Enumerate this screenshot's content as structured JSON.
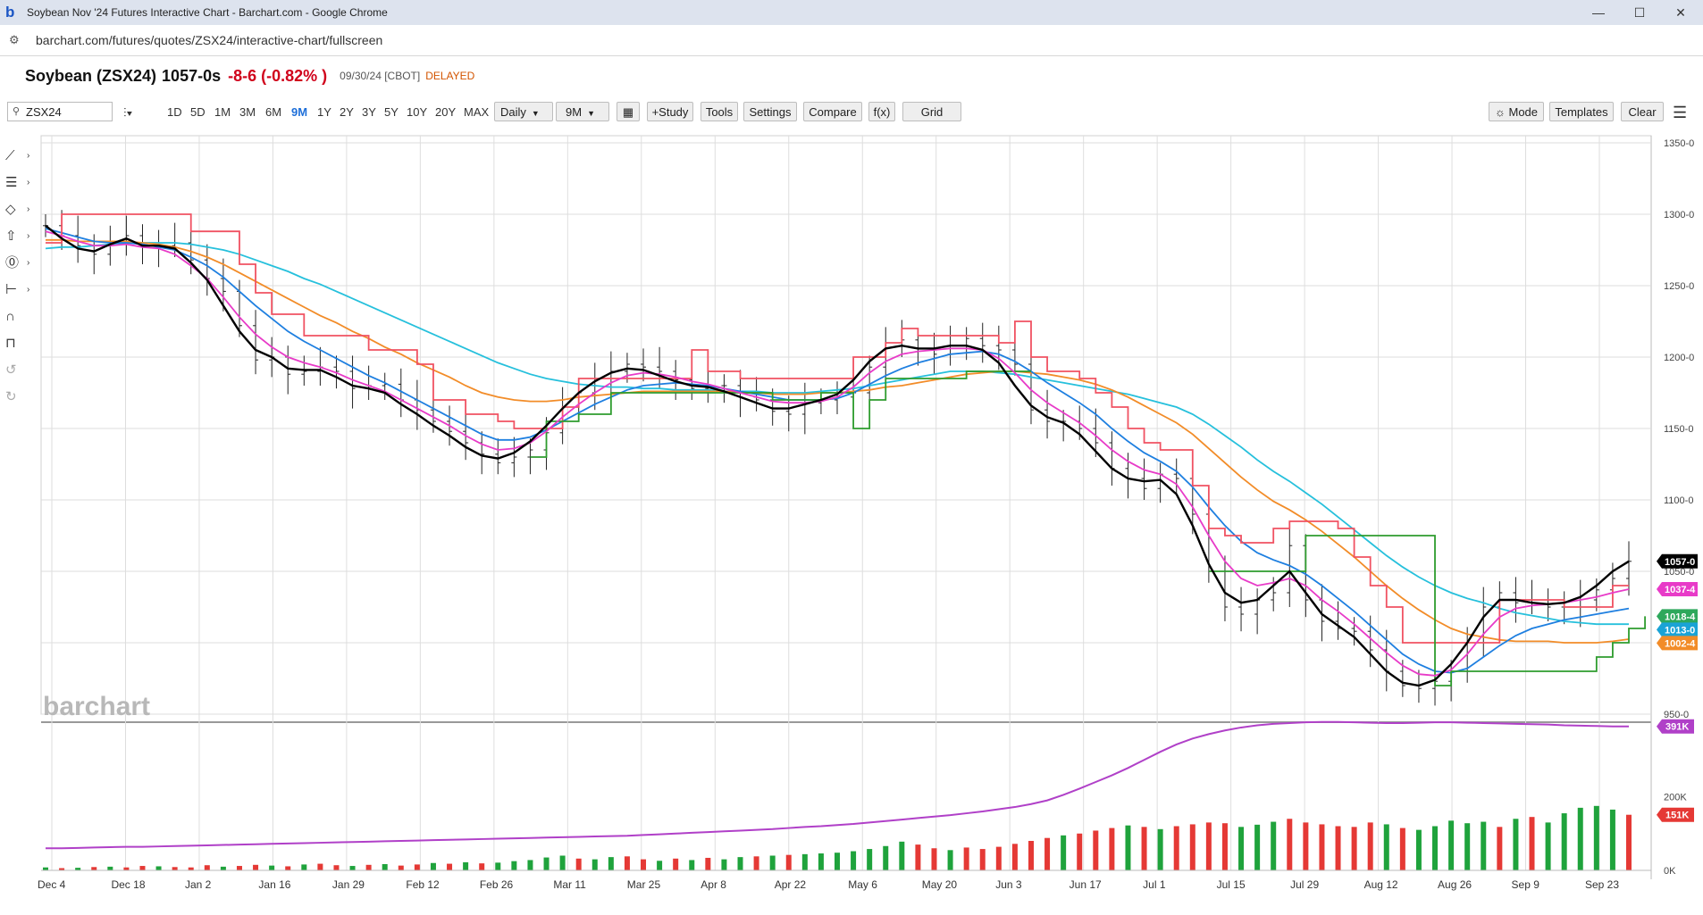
{
  "browser": {
    "window_title": "Soybean Nov '24 Futures Interactive Chart - Barchart.com - Google Chrome",
    "favicon": "b",
    "url": "barchart.com/futures/quotes/ZSX24/interactive-chart/fullscreen",
    "controls": {
      "minimize": "—",
      "maximize": "☐",
      "close": "✕"
    }
  },
  "quote": {
    "name": "Soybean (ZSX24)",
    "price": "1057-0s",
    "change": "-8-6 (-0.82% )",
    "date": "09/30/24 [CBOT]",
    "status": "DELAYED",
    "change_color": "#d0021b"
  },
  "toolbar": {
    "symbol_value": "ZSX24",
    "periods": [
      "1D",
      "5D",
      "1M",
      "3M",
      "6M",
      "9M",
      "1Y",
      "2Y",
      "3Y",
      "5Y",
      "10Y",
      "20Y",
      "MAX"
    ],
    "active_period": "9M",
    "interval": "Daily",
    "range": "9M",
    "calendar_icon": "▦",
    "study": "+Study",
    "tools": "Tools",
    "settings": "Settings",
    "compare": "Compare",
    "fx": "f(x)",
    "grid": "Grid",
    "mode": "☼ Mode",
    "templates": "Templates",
    "clear": "Clear",
    "menu_icon": "☰"
  },
  "drawing_tools": [
    "line-tool-icon",
    "fib-tool-icon",
    "shape-tool-icon",
    "arrow-tool-icon",
    "annotation-tool-icon",
    "measure-tool-icon",
    "magnet-icon",
    "lock-icon",
    "undo-icon",
    "redo-icon"
  ],
  "watermark": "barchart",
  "chart_data": {
    "type": "candlestick-with-overlays",
    "symbol": "ZSX24",
    "interval": "Daily",
    "price_axis": {
      "ylim": [
        950,
        1350
      ],
      "ticks": [
        "950-0",
        "1000-0",
        "1050-0",
        "1100-0",
        "1150-0",
        "1200-0",
        "1250-0",
        "1300-0",
        "1350-0"
      ]
    },
    "volume_axis": {
      "ylim": [
        0,
        400000
      ],
      "ticks": [
        "0K",
        "200K"
      ]
    },
    "date_labels": [
      "Dec 4",
      "Dec 18",
      "Jan 2",
      "Jan 16",
      "Jan 29",
      "Feb 12",
      "Feb 26",
      "Mar 11",
      "Mar 25",
      "Apr 8",
      "Apr 22",
      "May 6",
      "May 20",
      "Jun 3",
      "Jun 17",
      "Jul 1",
      "Jul 15",
      "Jul 29",
      "Aug 12",
      "Aug 26",
      "Sep 9",
      "Sep 23"
    ],
    "last_price_labels": [
      {
        "value": 1057,
        "label": "1057-0",
        "color": "#000000"
      },
      {
        "value": 1037.5,
        "label": "1037-4",
        "color": "#e83bc8"
      },
      {
        "value": 1018.5,
        "label": "1018-4",
        "color": "#2ea85c"
      },
      {
        "value": 1013,
        "label": "1013-0",
        "color": "#1aa3d6"
      },
      {
        "value": 1002.5,
        "label": "1002-4",
        "color": "#f28c28"
      }
    ],
    "volume_labels": [
      {
        "value": 391000,
        "label": "391K",
        "color": "#b040c8"
      },
      {
        "value": 151000,
        "label": "151K",
        "color": "#e53935"
      }
    ],
    "close_series": [
      1292,
      1285,
      1278,
      1272,
      1281,
      1285,
      1277,
      1278,
      1280,
      1268,
      1255,
      1246,
      1222,
      1198,
      1200,
      1188,
      1190,
      1193,
      1190,
      1178,
      1180,
      1181,
      1170,
      1163,
      1155,
      1148,
      1140,
      1132,
      1126,
      1130,
      1135,
      1147,
      1165,
      1175,
      1185,
      1190,
      1195,
      1193,
      1190,
      1184,
      1178,
      1180,
      1180,
      1172,
      1170,
      1162,
      1160,
      1168,
      1170,
      1172,
      1175,
      1193,
      1210,
      1212,
      1206,
      1202,
      1208,
      1213,
      1208,
      1205,
      1195,
      1163,
      1155,
      1155,
      1150,
      1140,
      1122,
      1115,
      1108,
      1118,
      1115,
      1090,
      1050,
      1025,
      1020,
      1030,
      1035,
      1068,
      1030,
      1015,
      1010,
      1008,
      995,
      980,
      970,
      968,
      973,
      980,
      1000,
      1025,
      1035,
      1028,
      1030,
      1025,
      1025,
      1030,
      1037,
      1045,
      1057
    ],
    "overlays": [
      {
        "color": "#000000",
        "values": [
          1292,
          1283,
          1276,
          1274,
          1279,
          1283,
          1278,
          1278,
          1276,
          1266,
          1254,
          1236,
          1218,
          1205,
          1200,
          1192,
          1191,
          1191,
          1186,
          1180,
          1178,
          1175,
          1167,
          1160,
          1152,
          1145,
          1137,
          1131,
          1129,
          1133,
          1141,
          1152,
          1164,
          1175,
          1183,
          1189,
          1192,
          1191,
          1187,
          1183,
          1180,
          1179,
          1176,
          1172,
          1168,
          1164,
          1164,
          1167,
          1170,
          1174,
          1184,
          1197,
          1206,
          1208,
          1206,
          1206,
          1208,
          1208,
          1205,
          1196,
          1180,
          1166,
          1158,
          1154,
          1146,
          1134,
          1122,
          1115,
          1113,
          1114,
          1104,
          1082,
          1055,
          1035,
          1028,
          1030,
          1040,
          1050,
          1035,
          1020,
          1012,
          1004,
          992,
          980,
          972,
          970,
          974,
          985,
          1000,
          1018,
          1030,
          1030,
          1028,
          1027,
          1028,
          1032,
          1040,
          1050,
          1057
        ]
      },
      {
        "color": "#e83bc8",
        "values": [
          1288,
          1285,
          1281,
          1278,
          1278,
          1279,
          1277,
          1276,
          1272,
          1264,
          1255,
          1242,
          1228,
          1216,
          1207,
          1200,
          1196,
          1193,
          1189,
          1184,
          1180,
          1176,
          1170,
          1164,
          1158,
          1152,
          1145,
          1139,
          1135,
          1136,
          1140,
          1148,
          1158,
          1167,
          1175,
          1182,
          1187,
          1189,
          1188,
          1186,
          1183,
          1181,
          1178,
          1175,
          1172,
          1169,
          1168,
          1168,
          1169,
          1172,
          1179,
          1189,
          1197,
          1202,
          1204,
          1205,
          1206,
          1206,
          1205,
          1199,
          1189,
          1177,
          1168,
          1161,
          1154,
          1145,
          1135,
          1127,
          1121,
          1118,
          1111,
          1095,
          1075,
          1057,
          1045,
          1040,
          1042,
          1045,
          1040,
          1030,
          1022,
          1013,
          1003,
          993,
          984,
          978,
          977,
          981,
          992,
          1006,
          1018,
          1024,
          1026,
          1027,
          1028,
          1030,
          1032,
          1035,
          1037.5
        ]
      },
      {
        "color": "#1e7fe0",
        "values": [
          1290,
          1287,
          1284,
          1281,
          1280,
          1280,
          1279,
          1277,
          1275,
          1270,
          1264,
          1256,
          1246,
          1236,
          1227,
          1218,
          1211,
          1205,
          1199,
          1193,
          1187,
          1182,
          1176,
          1170,
          1164,
          1158,
          1152,
          1146,
          1142,
          1142,
          1144,
          1149,
          1155,
          1161,
          1167,
          1172,
          1177,
          1180,
          1181,
          1182,
          1181,
          1180,
          1178,
          1176,
          1174,
          1172,
          1170,
          1170,
          1170,
          1171,
          1175,
          1181,
          1187,
          1192,
          1196,
          1199,
          1202,
          1203,
          1204,
          1202,
          1197,
          1190,
          1182,
          1175,
          1168,
          1160,
          1150,
          1141,
          1133,
          1127,
          1120,
          1109,
          1095,
          1082,
          1071,
          1063,
          1058,
          1054,
          1048,
          1040,
          1031,
          1022,
          1012,
          1002,
          992,
          985,
          980,
          979,
          982,
          990,
          998,
          1005,
          1010,
          1013,
          1016,
          1018,
          1020,
          1022,
          1024
        ]
      },
      {
        "color": "#f28c28",
        "values": [
          1282,
          1282,
          1281,
          1281,
          1281,
          1281,
          1280,
          1279,
          1277,
          1274,
          1270,
          1265,
          1259,
          1253,
          1247,
          1241,
          1235,
          1229,
          1224,
          1218,
          1213,
          1207,
          1202,
          1196,
          1191,
          1186,
          1180,
          1175,
          1172,
          1170,
          1169,
          1169,
          1170,
          1172,
          1173,
          1174,
          1175,
          1176,
          1176,
          1176,
          1176,
          1176,
          1176,
          1175,
          1175,
          1174,
          1174,
          1174,
          1175,
          1175,
          1176,
          1177,
          1179,
          1180,
          1182,
          1184,
          1186,
          1188,
          1189,
          1190,
          1190,
          1189,
          1188,
          1186,
          1184,
          1181,
          1177,
          1172,
          1166,
          1160,
          1154,
          1146,
          1136,
          1126,
          1116,
          1107,
          1099,
          1093,
          1086,
          1078,
          1069,
          1060,
          1050,
          1040,
          1031,
          1023,
          1016,
          1010,
          1006,
          1004,
          1002,
          1001,
          1001,
          1001,
          1000,
          1000,
          1000,
          1001,
          1002.5
        ]
      },
      {
        "color": "#26c0dc",
        "values": [
          1276,
          1277,
          1277,
          1278,
          1279,
          1280,
          1280,
          1280,
          1280,
          1279,
          1277,
          1275,
          1272,
          1268,
          1264,
          1260,
          1255,
          1251,
          1246,
          1241,
          1236,
          1231,
          1226,
          1221,
          1216,
          1211,
          1206,
          1201,
          1196,
          1192,
          1188,
          1185,
          1183,
          1181,
          1180,
          1179,
          1179,
          1178,
          1178,
          1177,
          1177,
          1177,
          1176,
          1176,
          1176,
          1175,
          1175,
          1175,
          1176,
          1177,
          1178,
          1180,
          1182,
          1184,
          1186,
          1188,
          1190,
          1190,
          1190,
          1189,
          1188,
          1186,
          1184,
          1182,
          1180,
          1178,
          1176,
          1174,
          1171,
          1168,
          1165,
          1160,
          1153,
          1145,
          1137,
          1128,
          1120,
          1113,
          1105,
          1097,
          1088,
          1079,
          1070,
          1061,
          1053,
          1046,
          1040,
          1035,
          1031,
          1028,
          1024,
          1021,
          1019,
          1017,
          1015,
          1014,
          1013,
          1013,
          1013
        ]
      },
      {
        "color": "#f05262",
        "step": true,
        "values": [
          1280,
          1300,
          1300,
          1300,
          1300,
          1300,
          1300,
          1300,
          1300,
          1288,
          1288,
          1288,
          1265,
          1245,
          1230,
          1230,
          1215,
          1215,
          1215,
          1215,
          1205,
          1205,
          1205,
          1195,
          1170,
          1170,
          1160,
          1160,
          1155,
          1150,
          1150,
          1150,
          1165,
          1185,
          1185,
          1185,
          1185,
          1185,
          1185,
          1185,
          1205,
          1190,
          1190,
          1185,
          1185,
          1185,
          1185,
          1185,
          1185,
          1185,
          1200,
          1200,
          1210,
          1220,
          1215,
          1215,
          1215,
          1215,
          1215,
          1210,
          1225,
          1200,
          1190,
          1190,
          1185,
          1175,
          1165,
          1150,
          1140,
          1135,
          1135,
          1110,
          1080,
          1075,
          1070,
          1070,
          1080,
          1085,
          1085,
          1085,
          1080,
          1060,
          1040,
          1025,
          1000,
          1000,
          1000,
          1000,
          1000,
          1000,
          1030,
          1030,
          1030,
          1030,
          1025,
          1025,
          1025,
          1040,
          1040
        ]
      },
      {
        "color": "#2e9c2e",
        "step": true,
        "values": [
          null,
          null,
          null,
          null,
          null,
          null,
          null,
          null,
          null,
          null,
          null,
          null,
          null,
          null,
          null,
          null,
          null,
          null,
          null,
          null,
          null,
          null,
          null,
          null,
          null,
          null,
          null,
          null,
          null,
          null,
          1130,
          1155,
          1155,
          1160,
          1160,
          1175,
          1175,
          1175,
          1175,
          1175,
          1175,
          1175,
          1175,
          1175,
          1175,
          1170,
          1170,
          1170,
          1175,
          1175,
          1150,
          1170,
          1185,
          1185,
          1185,
          1185,
          1185,
          1190,
          1190,
          1190,
          1190,
          1190,
          null,
          null,
          null,
          null,
          null,
          null,
          null,
          null,
          null,
          null,
          1050,
          1050,
          1050,
          1050,
          1050,
          1050,
          1075,
          1075,
          1075,
          1075,
          1075,
          1075,
          1075,
          1075,
          970,
          980,
          980,
          980,
          980,
          980,
          980,
          980,
          980,
          980,
          990,
          1000,
          1010,
          1018.5
        ]
      }
    ],
    "open_interest": [
      60,
      60,
      61,
      62,
      63,
      64,
      64,
      65,
      66,
      67,
      68,
      69,
      70,
      71,
      72,
      73,
      74,
      75,
      76,
      77,
      78,
      79,
      80,
      81,
      82,
      83,
      84,
      85,
      86,
      87,
      88,
      89,
      90,
      91,
      92,
      93,
      94,
      96,
      98,
      100,
      102,
      104,
      106,
      108,
      110,
      112,
      115,
      118,
      120,
      123,
      126,
      130,
      134,
      138,
      142,
      146,
      150,
      155,
      160,
      166,
      172,
      180,
      190,
      205,
      222,
      240,
      258,
      278,
      300,
      322,
      342,
      358,
      370,
      380,
      388,
      394,
      398,
      400,
      402,
      403,
      403,
      402,
      401,
      400,
      400,
      401,
      402,
      402,
      401,
      400,
      399,
      398,
      397,
      396,
      394,
      393,
      392,
      391,
      391
    ],
    "volume": [
      8,
      6,
      7,
      9,
      10,
      8,
      12,
      11,
      9,
      8,
      14,
      10,
      12,
      15,
      13,
      11,
      16,
      18,
      14,
      12,
      15,
      17,
      13,
      16,
      20,
      18,
      22,
      19,
      21,
      25,
      28,
      35,
      40,
      32,
      30,
      36,
      38,
      30,
      26,
      32,
      28,
      34,
      30,
      36,
      38,
      40,
      42,
      44,
      46,
      48,
      52,
      58,
      66,
      78,
      70,
      60,
      55,
      62,
      58,
      64,
      72,
      80,
      88,
      95,
      100,
      108,
      115,
      122,
      118,
      112,
      120,
      125,
      130,
      128,
      118,
      124,
      132,
      140,
      130,
      125,
      120,
      118,
      130,
      125,
      115,
      110,
      120,
      135,
      128,
      132,
      118,
      140,
      145,
      130,
      155,
      170,
      175,
      165,
      151
    ],
    "volume_up": [
      true,
      false,
      true,
      false,
      true,
      false,
      false,
      true,
      false,
      false,
      false,
      true,
      false,
      false,
      true,
      false,
      true,
      false,
      false,
      true,
      false,
      true,
      false,
      false,
      true,
      false,
      true,
      false,
      true,
      true,
      true,
      true,
      true,
      false,
      true,
      true,
      false,
      false,
      true,
      false,
      true,
      false,
      true,
      true,
      false,
      true,
      false,
      true,
      true,
      true,
      true,
      true,
      true,
      true,
      false,
      false,
      true,
      false,
      false,
      false,
      false,
      false,
      false,
      true,
      false,
      false,
      false,
      true,
      false,
      true,
      false,
      false,
      false,
      false,
      true,
      true,
      true,
      false,
      false,
      false,
      false,
      false,
      false,
      true,
      false,
      true,
      true,
      true,
      true,
      true,
      false,
      true,
      false,
      true,
      true,
      true,
      true,
      true,
      false
    ]
  }
}
